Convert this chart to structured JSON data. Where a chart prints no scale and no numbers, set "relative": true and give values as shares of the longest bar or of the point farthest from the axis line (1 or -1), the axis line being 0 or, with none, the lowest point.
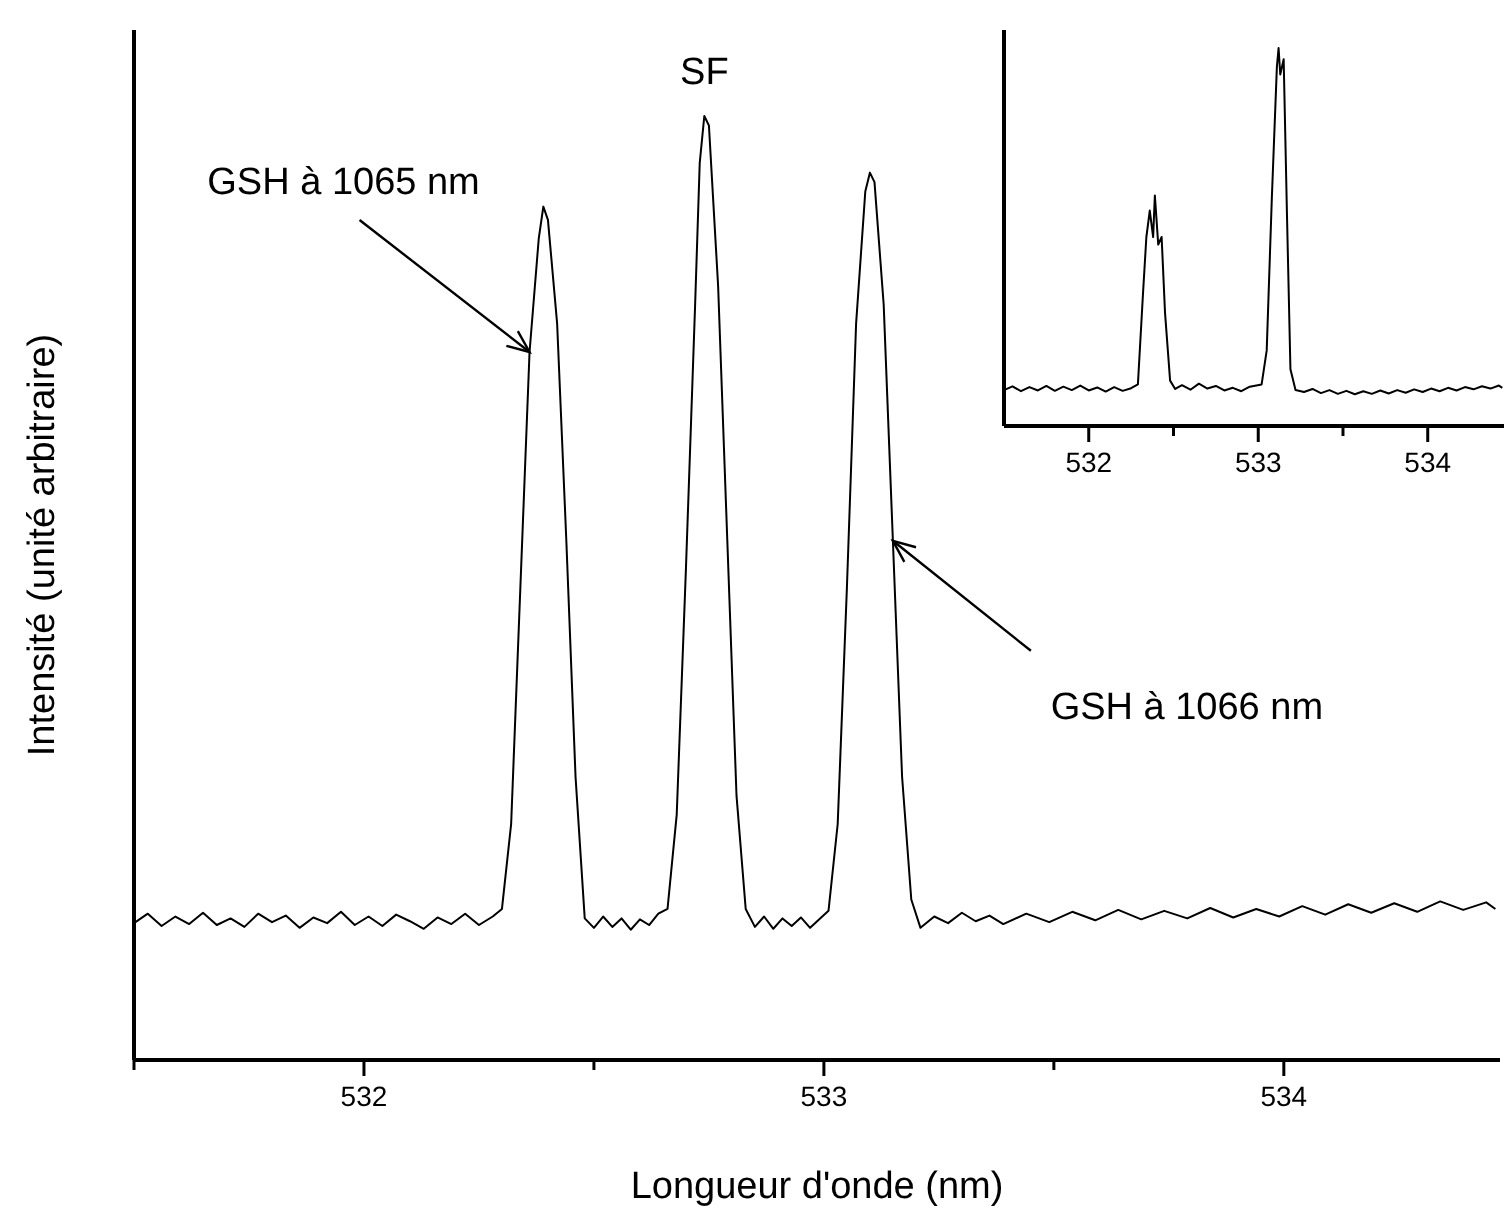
{
  "chart_data": [
    {
      "type": "line",
      "relative": true,
      "xlabel": "Longueur d'onde (nm)",
      "ylabel": "Intensité (unité arbitraire)",
      "xlim": [
        531.5,
        534.47
      ],
      "xticks": [
        {
          "value": 531.5,
          "label": null
        },
        532,
        {
          "value": 532.5,
          "label": null
        },
        533,
        {
          "value": 533.5,
          "label": null
        },
        534
      ],
      "annotations": [
        {
          "text": "GSH à 1065 nm",
          "x": 532.36,
          "y": 0.75
        },
        {
          "text": "SF",
          "x": 532.74,
          "y": 1.0
        },
        {
          "text": "GSH à 1066 nm",
          "x": 533.15,
          "y": 0.55
        }
      ],
      "series": [
        {
          "color": "#000000",
          "x": [
            531.5,
            531.53,
            531.56,
            531.59,
            531.62,
            531.65,
            531.68,
            531.71,
            531.74,
            531.77,
            531.8,
            531.83,
            531.86,
            531.89,
            531.92,
            531.95,
            531.98,
            532.01,
            532.04,
            532.07,
            532.1,
            532.13,
            532.16,
            532.19,
            532.22,
            532.25,
            532.28,
            532.3,
            532.32,
            532.34,
            532.36,
            532.38,
            532.39,
            532.4,
            532.42,
            532.44,
            532.46,
            532.48,
            532.5,
            532.52,
            532.54,
            532.56,
            532.58,
            532.6,
            532.62,
            532.64,
            532.66,
            532.68,
            532.7,
            532.72,
            532.73,
            532.74,
            532.75,
            532.77,
            532.79,
            532.81,
            532.83,
            532.85,
            532.87,
            532.89,
            532.91,
            532.93,
            532.95,
            532.97,
            532.99,
            533.01,
            533.03,
            533.05,
            533.07,
            533.09,
            533.1,
            533.11,
            533.13,
            533.15,
            533.17,
            533.19,
            533.21,
            533.24,
            533.27,
            533.3,
            533.33,
            533.36,
            533.39,
            533.44,
            533.49,
            533.54,
            533.59,
            533.64,
            533.69,
            533.74,
            533.79,
            533.84,
            533.89,
            533.94,
            533.99,
            534.04,
            534.09,
            534.14,
            534.19,
            534.24,
            534.29,
            534.34,
            534.39,
            534.44,
            534.46
          ],
          "values": [
            0.145,
            0.155,
            0.142,
            0.152,
            0.144,
            0.156,
            0.143,
            0.15,
            0.141,
            0.155,
            0.146,
            0.153,
            0.14,
            0.151,
            0.145,
            0.157,
            0.143,
            0.152,
            0.142,
            0.154,
            0.147,
            0.139,
            0.151,
            0.144,
            0.155,
            0.143,
            0.152,
            0.16,
            0.25,
            0.5,
            0.75,
            0.87,
            0.904,
            0.89,
            0.78,
            0.55,
            0.3,
            0.15,
            0.14,
            0.152,
            0.141,
            0.15,
            0.138,
            0.149,
            0.143,
            0.155,
            0.16,
            0.26,
            0.52,
            0.8,
            0.95,
            1.0,
            0.99,
            0.82,
            0.55,
            0.28,
            0.16,
            0.141,
            0.152,
            0.139,
            0.15,
            0.142,
            0.151,
            0.14,
            0.149,
            0.158,
            0.25,
            0.5,
            0.78,
            0.92,
            0.94,
            0.93,
            0.8,
            0.55,
            0.3,
            0.17,
            0.14,
            0.152,
            0.145,
            0.156,
            0.147,
            0.153,
            0.144,
            0.155,
            0.146,
            0.157,
            0.148,
            0.159,
            0.149,
            0.158,
            0.15,
            0.161,
            0.151,
            0.16,
            0.152,
            0.163,
            0.154,
            0.165,
            0.156,
            0.166,
            0.157,
            0.168,
            0.159,
            0.167,
            0.16
          ]
        }
      ]
    },
    {
      "type": "line",
      "relative": true,
      "xlim": [
        531.5,
        534.45
      ],
      "xticks": [
        532,
        {
          "value": 532.5,
          "label": null
        },
        533,
        {
          "value": 533.5,
          "label": null
        },
        534
      ],
      "series": [
        {
          "color": "#000000",
          "x": [
            531.5,
            531.55,
            531.6,
            531.65,
            531.7,
            531.75,
            531.8,
            531.85,
            531.9,
            531.95,
            532.0,
            532.05,
            532.1,
            532.15,
            532.2,
            532.25,
            532.29,
            532.32,
            532.34,
            532.36,
            532.38,
            532.39,
            532.41,
            532.43,
            532.45,
            532.48,
            532.51,
            532.55,
            532.6,
            532.65,
            532.7,
            532.75,
            532.8,
            532.85,
            532.9,
            532.95,
            533.02,
            533.05,
            533.08,
            533.11,
            533.12,
            533.13,
            533.15,
            533.17,
            533.19,
            533.22,
            533.27,
            533.32,
            533.37,
            533.42,
            533.47,
            533.52,
            533.57,
            533.62,
            533.67,
            533.72,
            533.77,
            533.82,
            533.87,
            533.92,
            533.97,
            534.02,
            534.07,
            534.12,
            534.17,
            534.22,
            534.27,
            534.32,
            534.37,
            534.42,
            534.44
          ],
          "values": [
            0.095,
            0.105,
            0.092,
            0.103,
            0.094,
            0.106,
            0.093,
            0.104,
            0.095,
            0.107,
            0.094,
            0.102,
            0.091,
            0.103,
            0.093,
            0.1,
            0.11,
            0.35,
            0.5,
            0.57,
            0.5,
            0.61,
            0.48,
            0.5,
            0.3,
            0.12,
            0.098,
            0.108,
            0.096,
            0.112,
            0.099,
            0.106,
            0.094,
            0.101,
            0.092,
            0.104,
            0.11,
            0.2,
            0.6,
            0.95,
            1.0,
            0.93,
            0.97,
            0.55,
            0.15,
            0.095,
            0.09,
            0.098,
            0.087,
            0.095,
            0.085,
            0.093,
            0.084,
            0.092,
            0.085,
            0.094,
            0.086,
            0.095,
            0.088,
            0.097,
            0.09,
            0.099,
            0.092,
            0.101,
            0.094,
            0.103,
            0.097,
            0.105,
            0.099,
            0.107,
            0.101
          ]
        }
      ]
    }
  ]
}
